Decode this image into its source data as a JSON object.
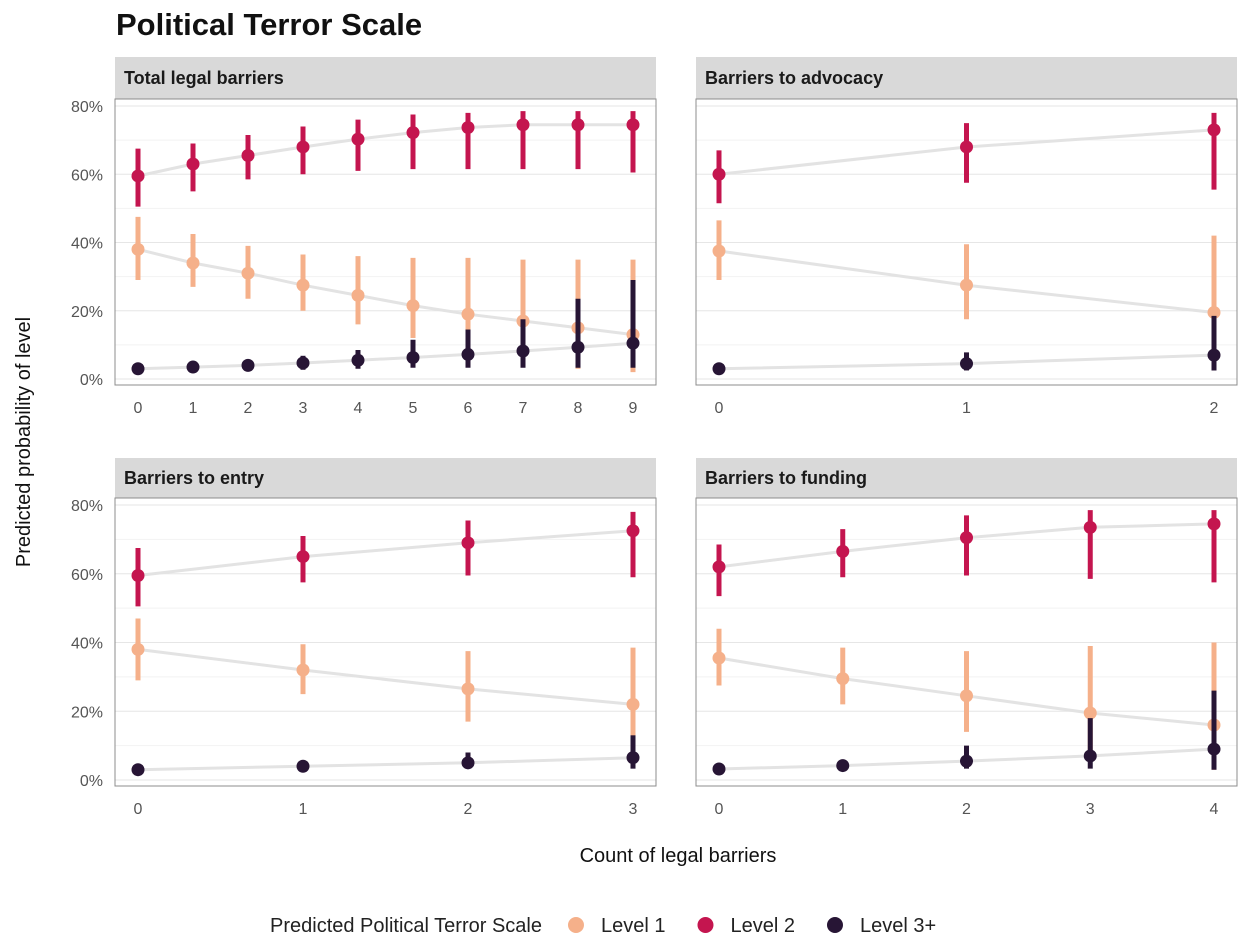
{
  "title": "Political Terror Scale",
  "xlabel": "Count of legal barriers",
  "ylabel": "Predicted probability of level",
  "legend": {
    "title": "Predicted Political Terror Scale",
    "items": [
      {
        "label": "Level 1",
        "color": "#f5b08a"
      },
      {
        "label": "Level 2",
        "color": "#c4154f"
      },
      {
        "label": "Level 3+",
        "color": "#271535"
      }
    ]
  },
  "chart_data": [
    {
      "type": "scatter",
      "panel": "Total legal barriers",
      "x": [
        0,
        1,
        2,
        3,
        4,
        5,
        6,
        7,
        8,
        9
      ],
      "ylim": [
        0,
        0.8
      ],
      "yticks": [
        "0%",
        "20%",
        "40%",
        "60%",
        "80%"
      ],
      "series": [
        {
          "name": "Level 1",
          "y": [
            0.38,
            0.34,
            0.31,
            0.275,
            0.245,
            0.215,
            0.19,
            0.17,
            0.15,
            0.13
          ],
          "lo": [
            0.29,
            0.27,
            0.235,
            0.2,
            0.16,
            0.12,
            0.08,
            0.05,
            0.03,
            0.02
          ],
          "hi": [
            0.475,
            0.425,
            0.39,
            0.365,
            0.36,
            0.355,
            0.355,
            0.35,
            0.35,
            0.35
          ]
        },
        {
          "name": "Level 2",
          "y": [
            0.595,
            0.63,
            0.655,
            0.68,
            0.703,
            0.722,
            0.737,
            0.745,
            0.745,
            0.745
          ],
          "lo": [
            0.505,
            0.55,
            0.585,
            0.6,
            0.61,
            0.615,
            0.615,
            0.615,
            0.615,
            0.605
          ],
          "hi": [
            0.675,
            0.69,
            0.715,
            0.74,
            0.76,
            0.775,
            0.78,
            0.785,
            0.785,
            0.785
          ]
        },
        {
          "name": "Level 3+",
          "y": [
            0.03,
            0.035,
            0.04,
            0.047,
            0.055,
            0.063,
            0.072,
            0.082,
            0.093,
            0.105
          ],
          "lo": [
            0.02,
            0.022,
            0.025,
            0.027,
            0.03,
            0.033,
            0.033,
            0.033,
            0.033,
            0.033
          ],
          "hi": [
            0.04,
            0.048,
            0.055,
            0.068,
            0.085,
            0.115,
            0.145,
            0.175,
            0.235,
            0.29
          ]
        }
      ]
    },
    {
      "type": "scatter",
      "panel": "Barriers to advocacy",
      "x": [
        0,
        1,
        2
      ],
      "ylim": [
        0,
        0.8
      ],
      "yticks": [
        "0%",
        "20%",
        "40%",
        "60%",
        "80%"
      ],
      "series": [
        {
          "name": "Level 1",
          "y": [
            0.375,
            0.275,
            0.195
          ],
          "lo": [
            0.29,
            0.175,
            0.065
          ],
          "hi": [
            0.465,
            0.395,
            0.42
          ]
        },
        {
          "name": "Level 2",
          "y": [
            0.6,
            0.68,
            0.73
          ],
          "lo": [
            0.515,
            0.575,
            0.555
          ],
          "hi": [
            0.67,
            0.75,
            0.78
          ]
        },
        {
          "name": "Level 3+",
          "y": [
            0.03,
            0.045,
            0.07
          ],
          "lo": [
            0.02,
            0.025,
            0.025
          ],
          "hi": [
            0.04,
            0.078,
            0.185
          ]
        }
      ]
    },
    {
      "type": "scatter",
      "panel": "Barriers to entry",
      "x": [
        0,
        1,
        2,
        3
      ],
      "ylim": [
        0,
        0.8
      ],
      "yticks": [
        "0%",
        "20%",
        "40%",
        "60%",
        "80%"
      ],
      "series": [
        {
          "name": "Level 1",
          "y": [
            0.38,
            0.32,
            0.265,
            0.22
          ],
          "lo": [
            0.29,
            0.25,
            0.17,
            0.11
          ],
          "hi": [
            0.47,
            0.395,
            0.375,
            0.385
          ]
        },
        {
          "name": "Level 2",
          "y": [
            0.595,
            0.65,
            0.69,
            0.725
          ],
          "lo": [
            0.505,
            0.575,
            0.595,
            0.59
          ],
          "hi": [
            0.675,
            0.71,
            0.755,
            0.78
          ]
        },
        {
          "name": "Level 3+",
          "y": [
            0.03,
            0.04,
            0.05,
            0.065
          ],
          "lo": [
            0.022,
            0.028,
            0.033,
            0.033
          ],
          "hi": [
            0.04,
            0.052,
            0.08,
            0.13
          ]
        }
      ]
    },
    {
      "type": "scatter",
      "panel": "Barriers to funding",
      "x": [
        0,
        1,
        2,
        3,
        4
      ],
      "ylim": [
        0,
        0.8
      ],
      "yticks": [
        "0%",
        "20%",
        "40%",
        "60%",
        "80%"
      ],
      "series": [
        {
          "name": "Level 1",
          "y": [
            0.355,
            0.295,
            0.245,
            0.195,
            0.16
          ],
          "lo": [
            0.275,
            0.22,
            0.14,
            0.07,
            0.03
          ],
          "hi": [
            0.44,
            0.385,
            0.375,
            0.39,
            0.4
          ]
        },
        {
          "name": "Level 2",
          "y": [
            0.62,
            0.665,
            0.705,
            0.735,
            0.745
          ],
          "lo": [
            0.535,
            0.59,
            0.595,
            0.585,
            0.575
          ],
          "hi": [
            0.685,
            0.73,
            0.77,
            0.785,
            0.785
          ]
        },
        {
          "name": "Level 3+",
          "y": [
            0.032,
            0.042,
            0.055,
            0.07,
            0.09
          ],
          "lo": [
            0.024,
            0.03,
            0.033,
            0.033,
            0.03
          ],
          "hi": [
            0.04,
            0.055,
            0.1,
            0.18,
            0.26
          ]
        }
      ]
    }
  ]
}
